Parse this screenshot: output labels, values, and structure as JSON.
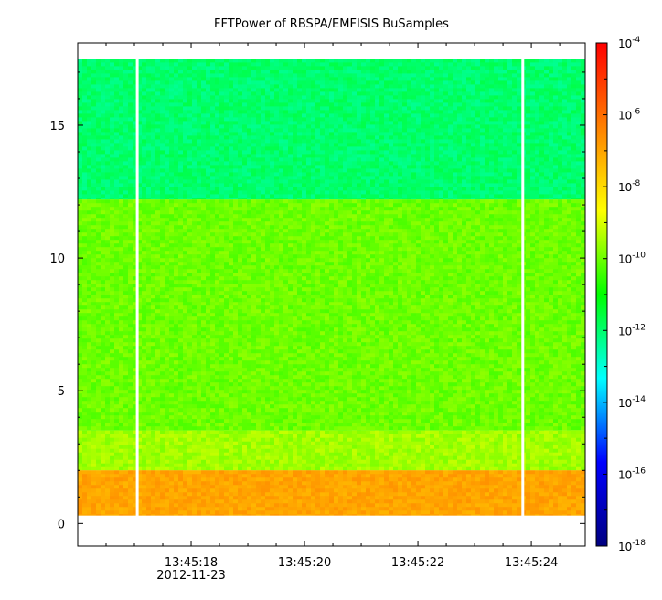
{
  "chart_data": {
    "type": "heatmap",
    "title": "FFTPower of RBSPA/EMFISIS  BuSamples",
    "xlabel": "",
    "ylabel": "",
    "x_date": "2012-11-23",
    "xlim": [
      "13:45:16.00",
      "13:45:24.95"
    ],
    "ylim": [
      -0.85,
      18.1
    ],
    "y_ticks": [
      0,
      5,
      10,
      15
    ],
    "x_ticks": [
      "13:45:18",
      "13:45:20",
      "13:45:22",
      "13:45:24"
    ],
    "x_minor_ticks_s": [
      16.5,
      17.0,
      17.5,
      18.5,
      19.0,
      19.5,
      20.5,
      21.0,
      21.5,
      22.5,
      23.0,
      23.5,
      24.5
    ],
    "data_extent": {
      "x": [
        "13:45:16.00",
        "13:45:24.95"
      ],
      "y": [
        0,
        17.5
      ]
    },
    "gaps_s": [
      17.05,
      23.85
    ],
    "bands": [
      {
        "y_range": [
          12.2,
          17.5
        ],
        "level": "1e-12"
      },
      {
        "y_range": [
          3.5,
          12.2
        ],
        "level": "1e-10"
      },
      {
        "y_range": [
          2.0,
          3.5
        ],
        "level": "3e-10"
      },
      {
        "y_range": [
          0.3,
          2.0
        ],
        "level": "1e-7"
      }
    ],
    "colorbar": {
      "scale": "log",
      "range": [
        1e-18,
        0.0001
      ],
      "ticks": [
        -4,
        -6,
        -8,
        -10,
        -12,
        -14,
        -16,
        -18
      ],
      "colors": [
        "#000080",
        "#0000ff",
        "#00ffff",
        "#00ff00",
        "#ffff00",
        "#ff8000",
        "#ff0000"
      ]
    },
    "grid": false
  }
}
